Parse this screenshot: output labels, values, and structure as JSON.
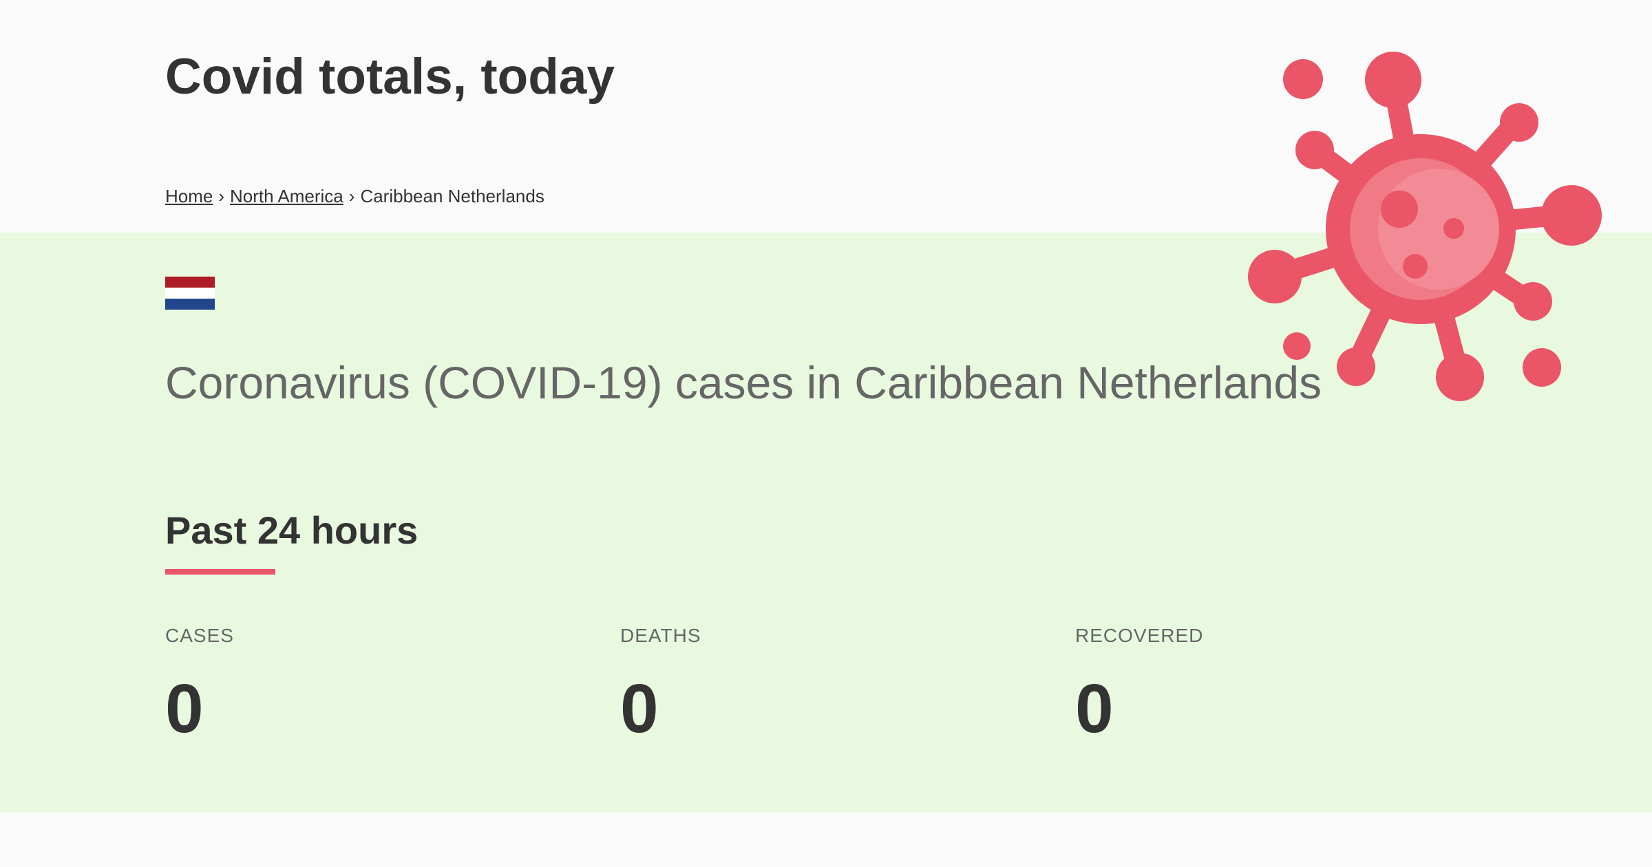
{
  "header": {
    "site_title": "Covid totals, today"
  },
  "breadcrumb": {
    "items": [
      {
        "label": "Home",
        "link": true
      },
      {
        "label": "North America",
        "link": true
      },
      {
        "label": "Caribbean Netherlands",
        "link": false
      }
    ],
    "separator": "›"
  },
  "country": {
    "flag_colors": [
      "#ae1c28",
      "#ffffff",
      "#21468b"
    ],
    "heading": "Coronavirus (COVID-19) cases in Caribbean Netherlands"
  },
  "past_24h": {
    "title": "Past 24 hours",
    "accent_color": "#ea5567",
    "stats": [
      {
        "label": "CASES",
        "value": "0"
      },
      {
        "label": "DEATHS",
        "value": "0"
      },
      {
        "label": "RECOVERED",
        "value": "0"
      }
    ]
  },
  "decor": {
    "icon": "virus-icon",
    "virus_color": "#ea5567"
  }
}
